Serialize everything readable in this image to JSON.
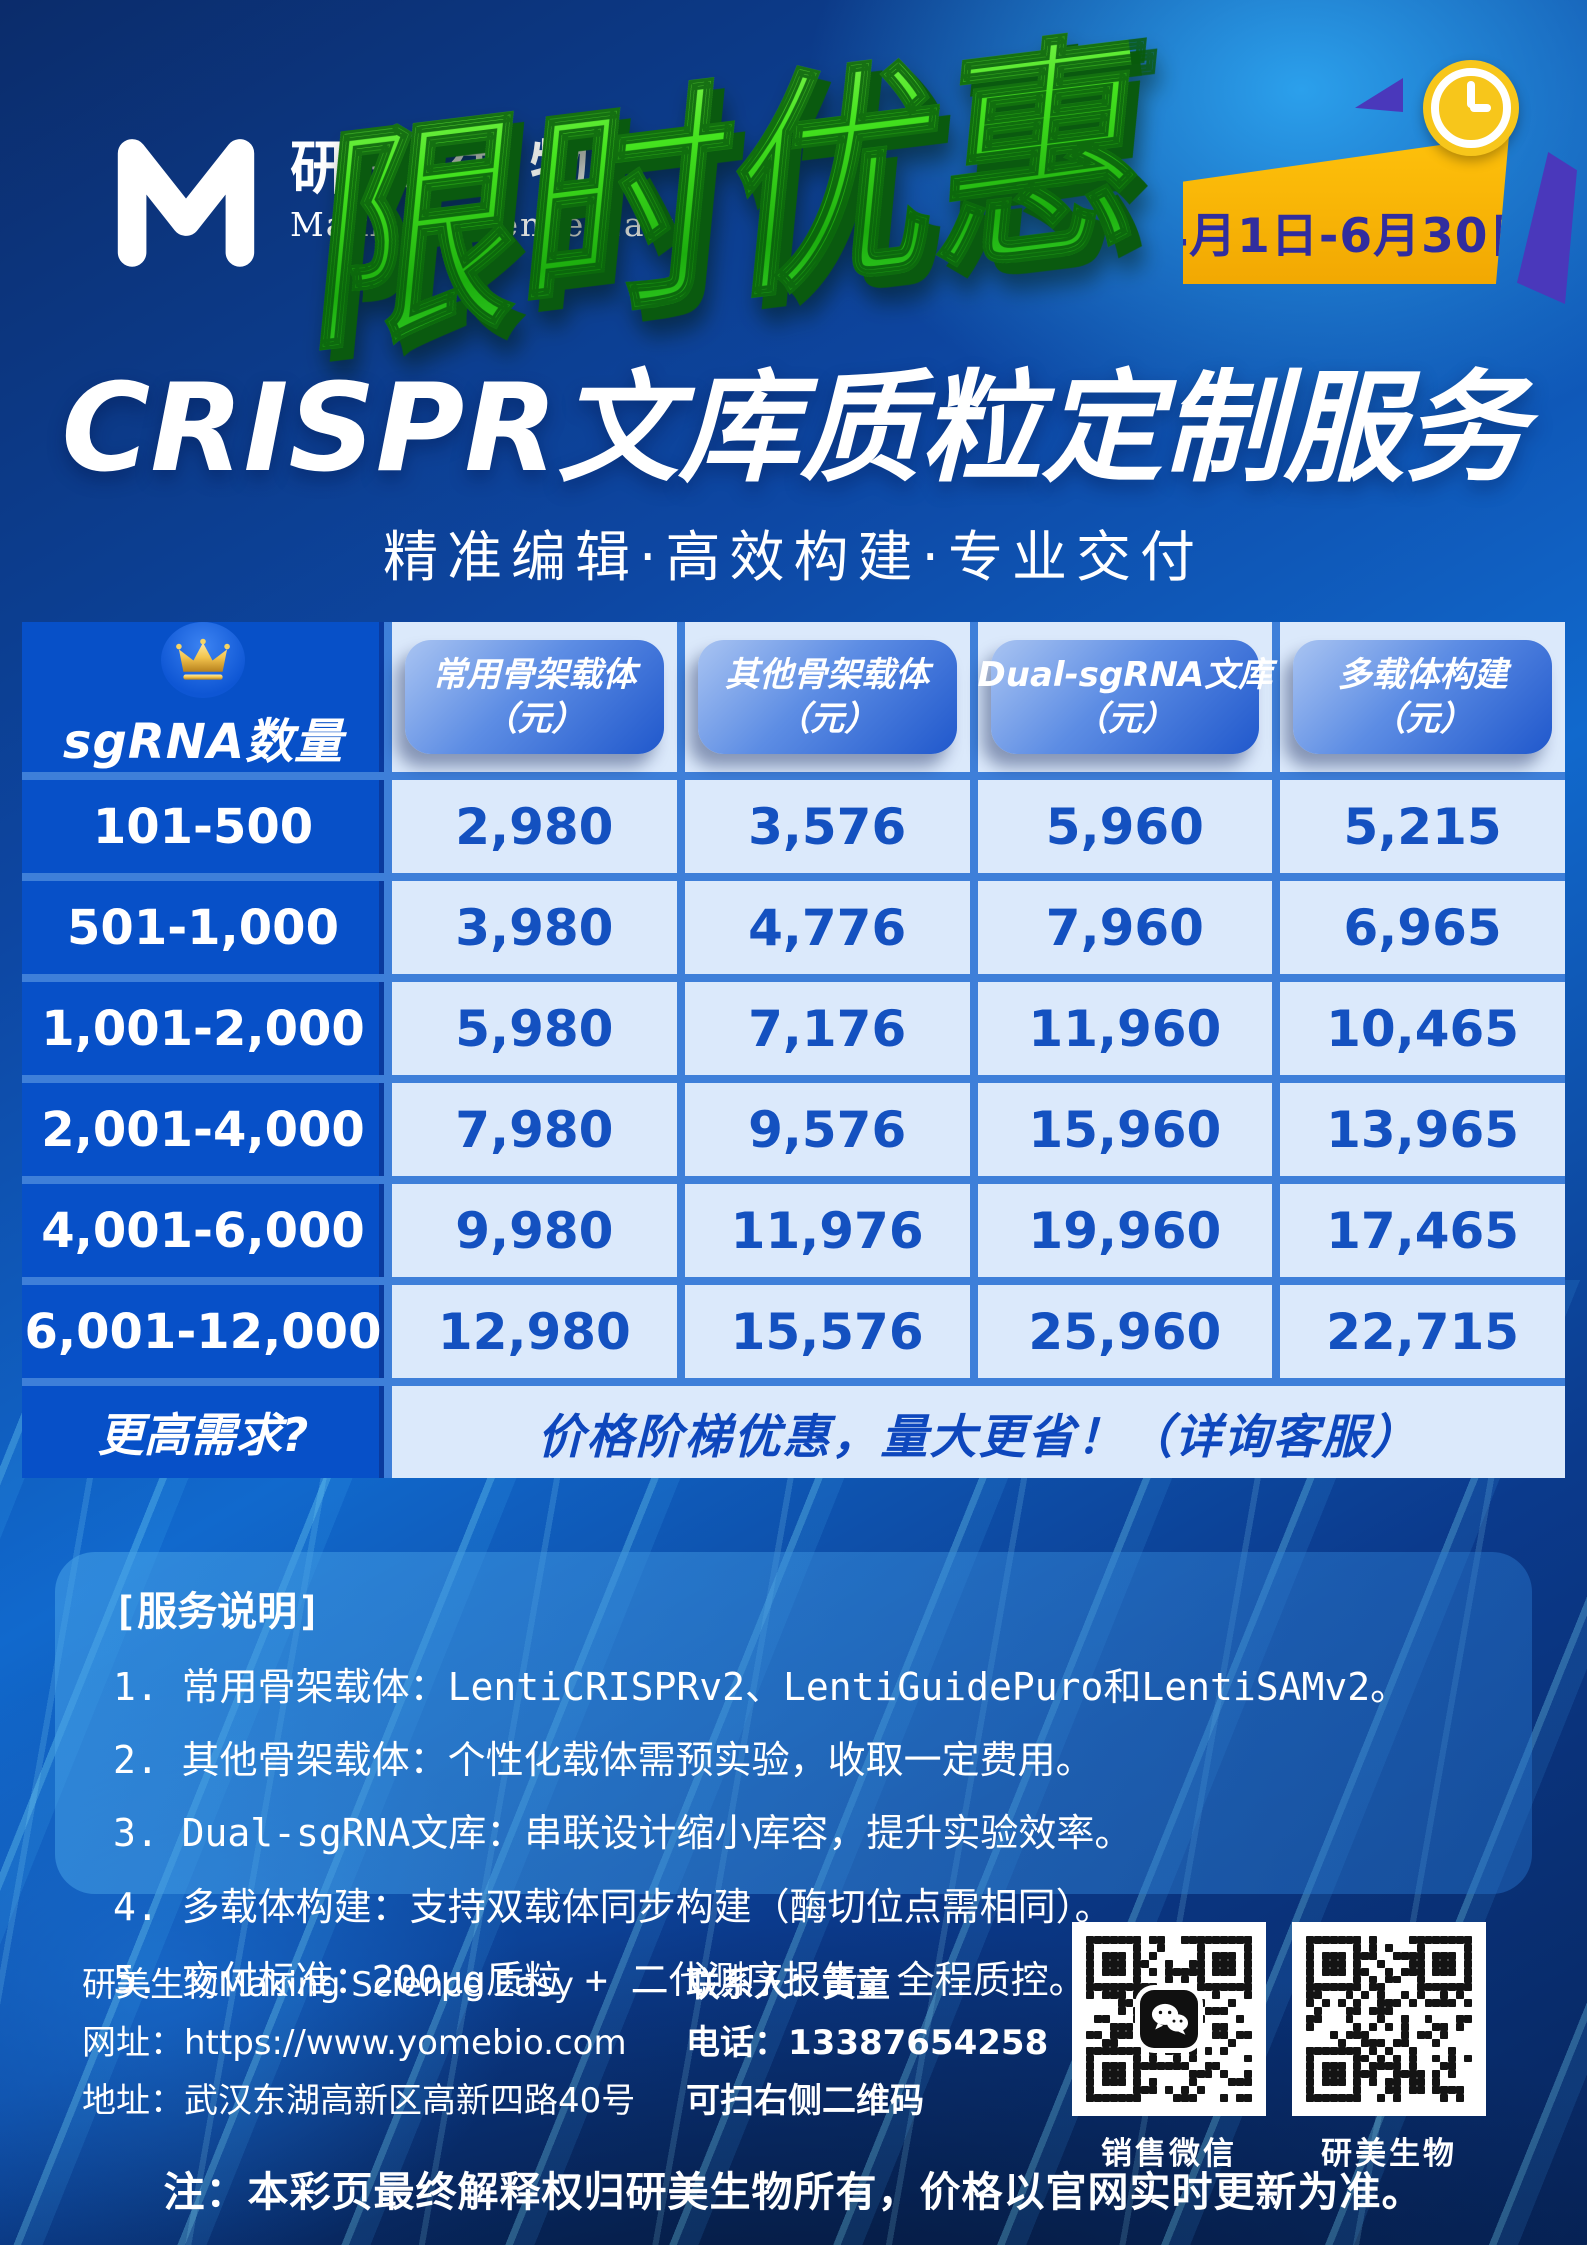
{
  "brand": {
    "name": "研美生物",
    "slogan": "Making Science Easy"
  },
  "promo": {
    "banner_text": "限时优惠",
    "date_range": "4月1日-6月30日"
  },
  "header": {
    "title": "CRISPR文库质粒定制服务",
    "subtitle": "精准编辑·高效构建·专业交付"
  },
  "table": {
    "corner_label": "sgRNA数量",
    "columns": [
      {
        "line1": "常用骨架载体",
        "line2": "（元）"
      },
      {
        "line1": "其他骨架载体",
        "line2": "（元）"
      },
      {
        "line1": "Dual-sgRNA文库",
        "line2": "（元）"
      },
      {
        "line1": "多载体构建",
        "line2": "（元）"
      }
    ],
    "rows": [
      {
        "label": "101-500",
        "values": [
          "2,980",
          "3,576",
          "5,960",
          "5,215"
        ]
      },
      {
        "label": "501-1,000",
        "values": [
          "3,980",
          "4,776",
          "7,960",
          "6,965"
        ]
      },
      {
        "label": "1,001-2,000",
        "values": [
          "5,980",
          "7,176",
          "11,960",
          "10,465"
        ]
      },
      {
        "label": "2,001-4,000",
        "values": [
          "7,980",
          "9,576",
          "15,960",
          "13,965"
        ]
      },
      {
        "label": "4,001-6,000",
        "values": [
          "9,980",
          "11,976",
          "19,960",
          "17,465"
        ]
      },
      {
        "label": "6,001-12,000",
        "values": [
          "12,980",
          "15,576",
          "25,960",
          "22,715"
        ]
      }
    ],
    "footer_row": {
      "label": "更高需求?",
      "note": "价格阶梯优惠，量大更省！（详询客服）"
    }
  },
  "notes": {
    "title": "[服务说明]",
    "items": [
      "1. 常用骨架载体：LentiCRISPRv2、LentiGuidePuro和LentiSAMv2。",
      "2. 其他骨架载体：个性化载体需预实验，收取一定费用。",
      "3. Dual-sgRNA文库：串联设计缩小库容，提升实验效率。",
      "4. 多载体构建：支持双载体同步构建（酶切位点需相同）。",
      "5. 交付标准：200μg质粒 + 二代测序报告，全程质控。"
    ]
  },
  "footer": {
    "company": "研美生物Making Science Easy",
    "website": "网址：https://www.yomebio.com",
    "address": "地址：武汉东湖高新区高新四路40号",
    "contact": "联系人：黄童",
    "phone": "电话：13387654258",
    "scan_hint": "可扫右侧二维码",
    "qr1_label": "销售微信",
    "qr2_label": "研美生物"
  },
  "disclaimer": "注：本彩页最终解释权归研美生物所有，价格以官网实时更新为准。",
  "colors": {
    "accent_green": "#38d62a",
    "accent_yellow": "#f7b90a",
    "badge_purple": "#4a38bb",
    "table_dark_blue": "#0750c8",
    "table_light_blue": "#dbe9fb",
    "number_blue": "#1451c0",
    "grid_blue": "#3e7fd9"
  }
}
